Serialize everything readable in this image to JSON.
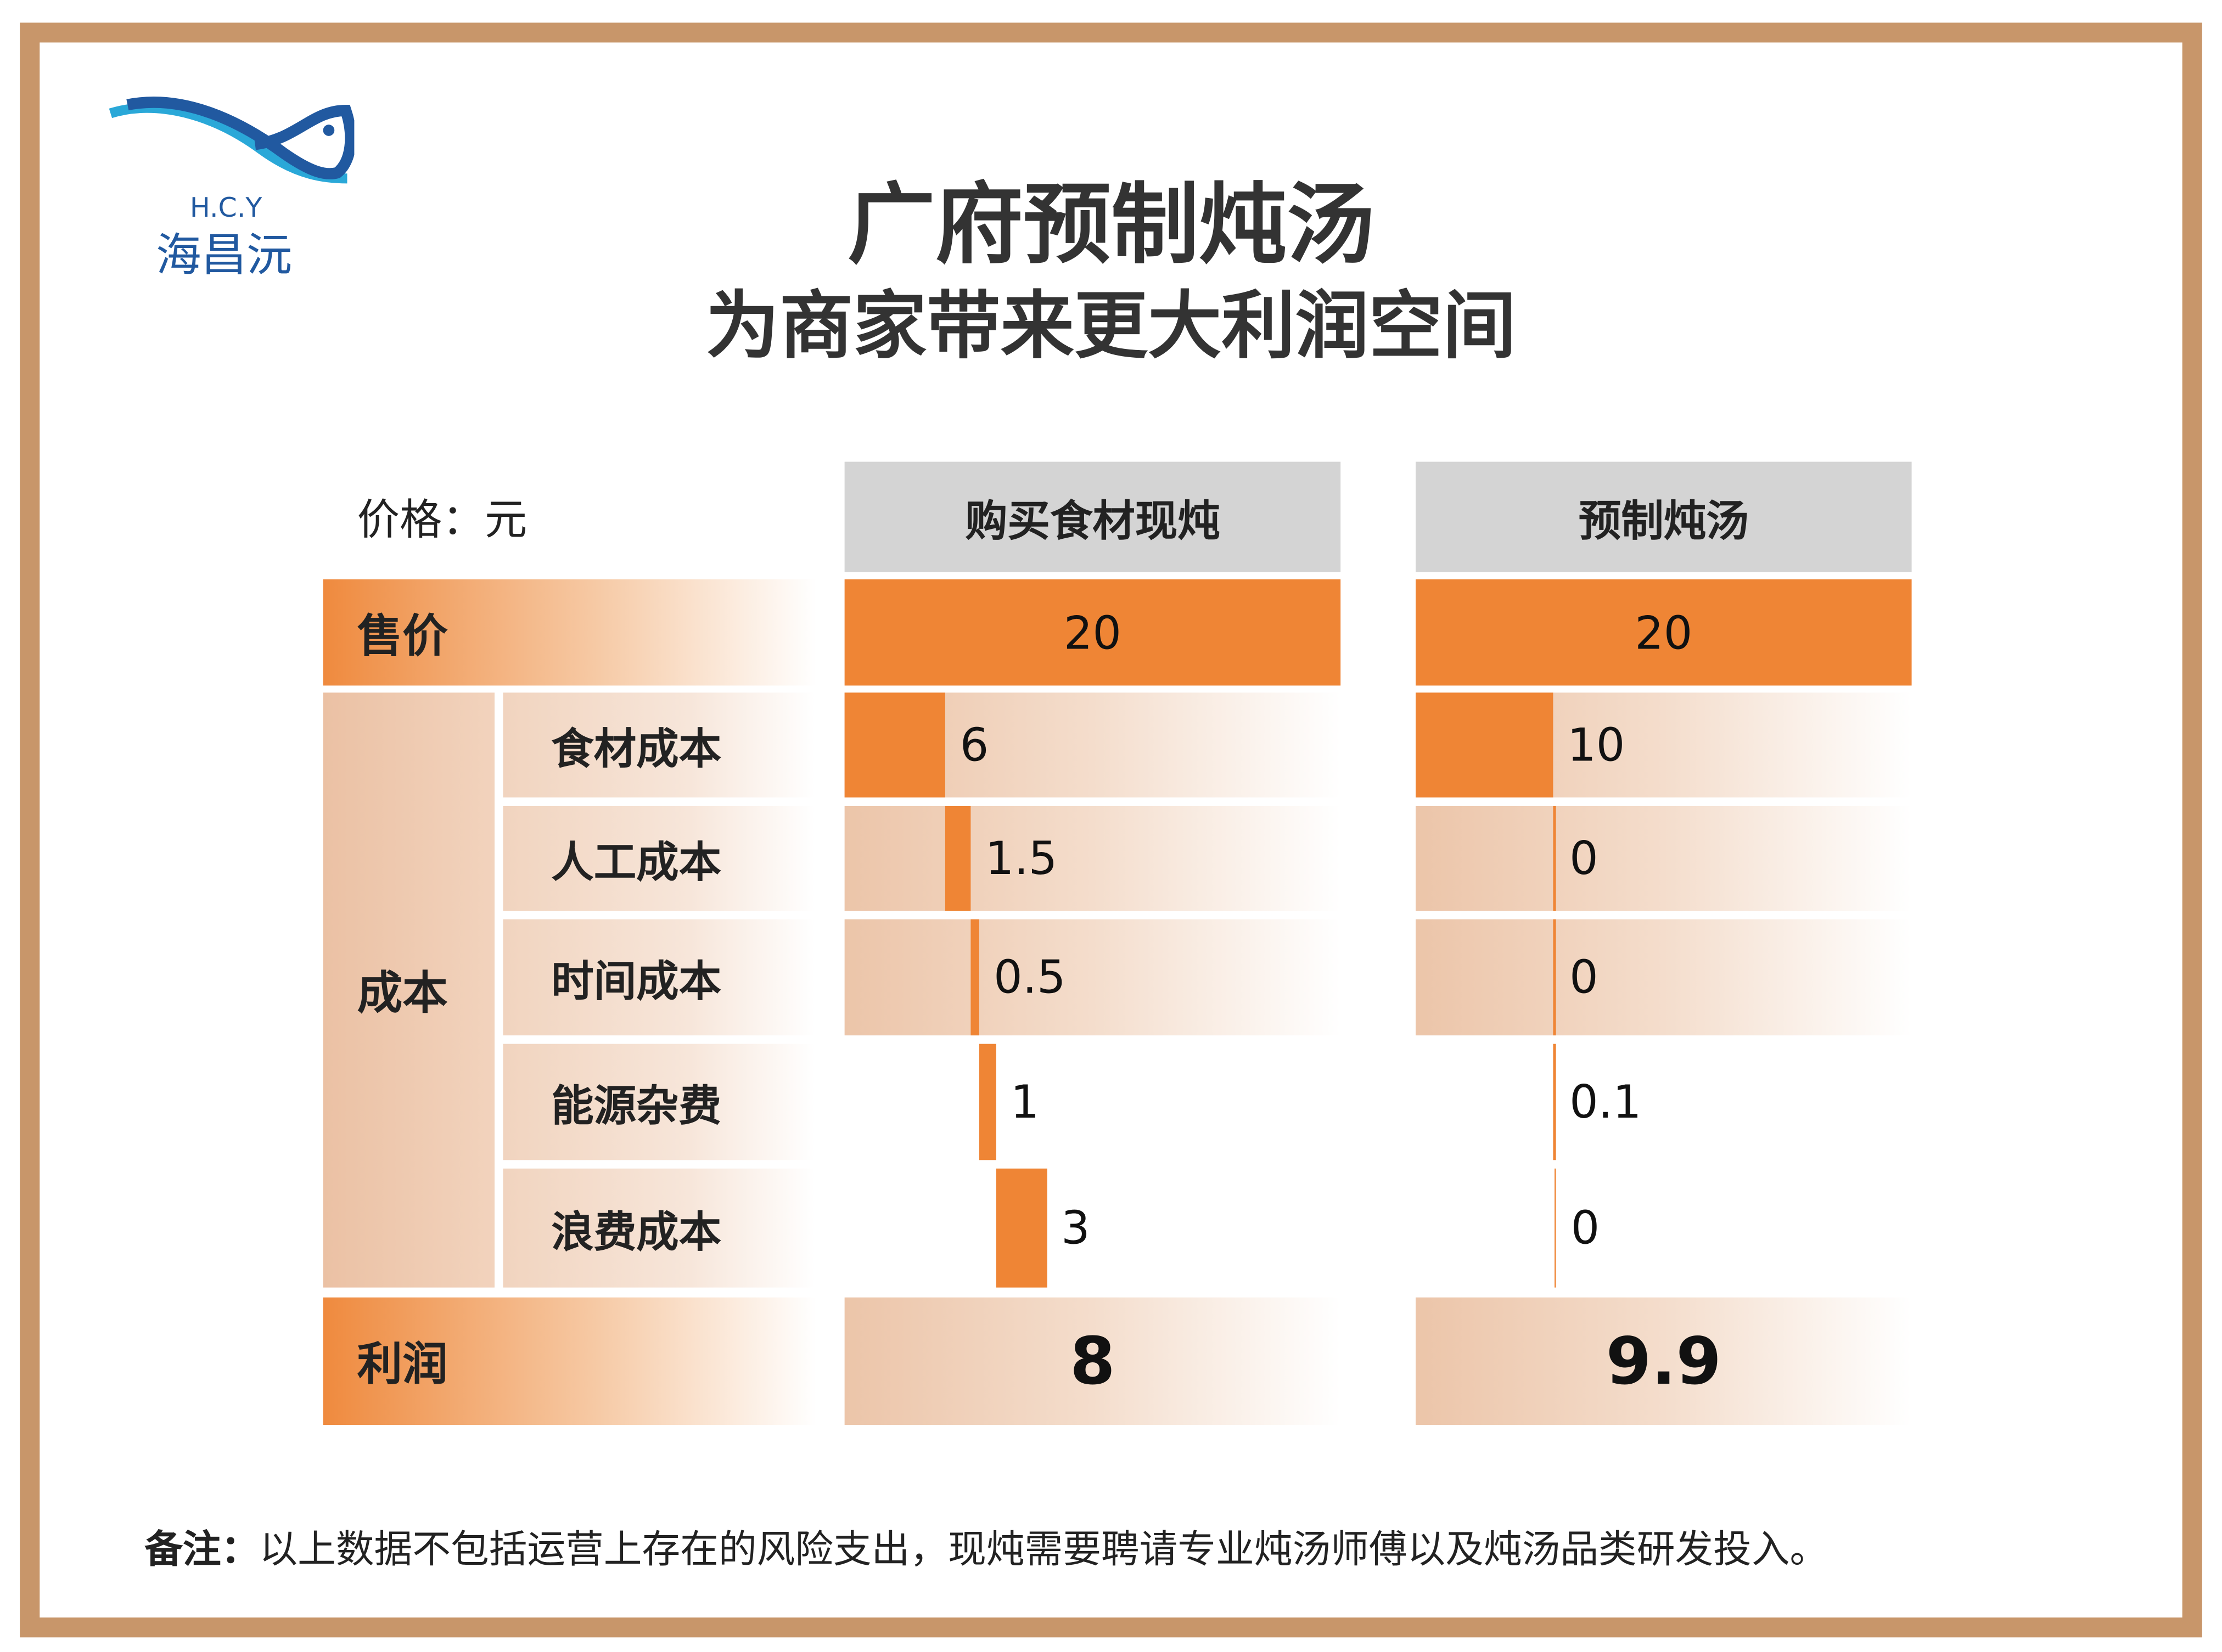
{
  "logo": {
    "latin": "H.C.Y",
    "chinese": "海昌沅",
    "colors": {
      "dark": "#2159a0",
      "light": "#2aa8d8"
    }
  },
  "title": {
    "line1": "广府预制炖汤",
    "line2": "为商家带来更大利润空间"
  },
  "unit_label": "价格：元",
  "colors": {
    "accent": "#ef8535",
    "border": "#c8966a",
    "header": "#d4d4d4"
  },
  "chart_data": {
    "type": "waterfall-table",
    "columns": [
      "购买食材现炖",
      "预制炖汤"
    ],
    "sale_label": "售价",
    "cost_group_label": "成本",
    "profit_label": "利润",
    "cost_items": [
      "食材成本",
      "人工成本",
      "时间成本",
      "能源杂费",
      "浪费成本"
    ],
    "series": [
      {
        "name": "购买食材现炖",
        "sale": "20",
        "costs": [
          6,
          1.5,
          0.5,
          1,
          3
        ],
        "cost_labels": [
          "6",
          "1.5",
          "0.5",
          "1",
          "3"
        ],
        "profit": "8"
      },
      {
        "name": "预制炖汤",
        "sale": "20",
        "costs": [
          10,
          0,
          0,
          0.1,
          0
        ],
        "cost_labels": [
          "10",
          "0",
          "0",
          "0.1",
          "0"
        ],
        "profit": "9.9"
      }
    ]
  },
  "note": {
    "label": "备注：",
    "text": "以上数据不包括运营上存在的风险支出，现炖需要聘请专业炖汤师傅以及炖汤品类研发投入。"
  }
}
